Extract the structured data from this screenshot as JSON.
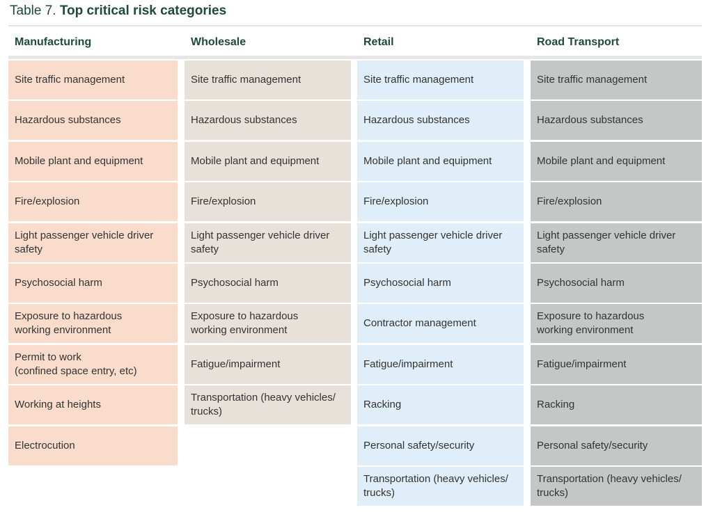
{
  "title": {
    "prefix": "Table 7.",
    "main": "Top critical risk categories"
  },
  "columns": [
    {
      "header": "Manufacturing",
      "items": [
        "Site traffic management",
        "Hazardous substances",
        "Mobile plant and equipment",
        "Fire/explosion",
        "Light passenger vehicle driver\nsafety",
        "Psychosocial harm",
        "Exposure to hazardous\nworking environment",
        "Permit to work\n(confined space entry, etc)",
        "Working at heights",
        "Electrocution"
      ]
    },
    {
      "header": "Wholesale",
      "items": [
        "Site traffic management",
        "Hazardous substances",
        "Mobile plant and equipment",
        "Fire/explosion",
        "Light passenger vehicle driver\nsafety",
        "Psychosocial harm",
        "Exposure to hazardous\nworking environment",
        "Fatigue/impairment",
        "Transportation (heavy vehicles/\ntrucks)"
      ]
    },
    {
      "header": "Retail",
      "items": [
        "Site traffic management",
        "Hazardous substances",
        "Mobile plant and equipment",
        "Fire/explosion",
        "Light passenger vehicle driver\nsafety",
        "Psychosocial harm",
        "Contractor management",
        "Fatigue/impairment",
        "Racking",
        "Personal safety/security",
        "Transportation (heavy vehicles/\ntrucks)"
      ]
    },
    {
      "header": "Road Transport",
      "items": [
        "Site traffic management",
        "Hazardous substances",
        "Mobile plant and equipment",
        "Fire/explosion",
        "Light passenger vehicle driver\nsafety",
        "Psychosocial harm",
        "Exposure to hazardous\nworking environment",
        "Fatigue/impairment",
        "Racking",
        "Personal safety/security",
        "Transportation (heavy vehicles/\ntrucks)"
      ]
    }
  ]
}
